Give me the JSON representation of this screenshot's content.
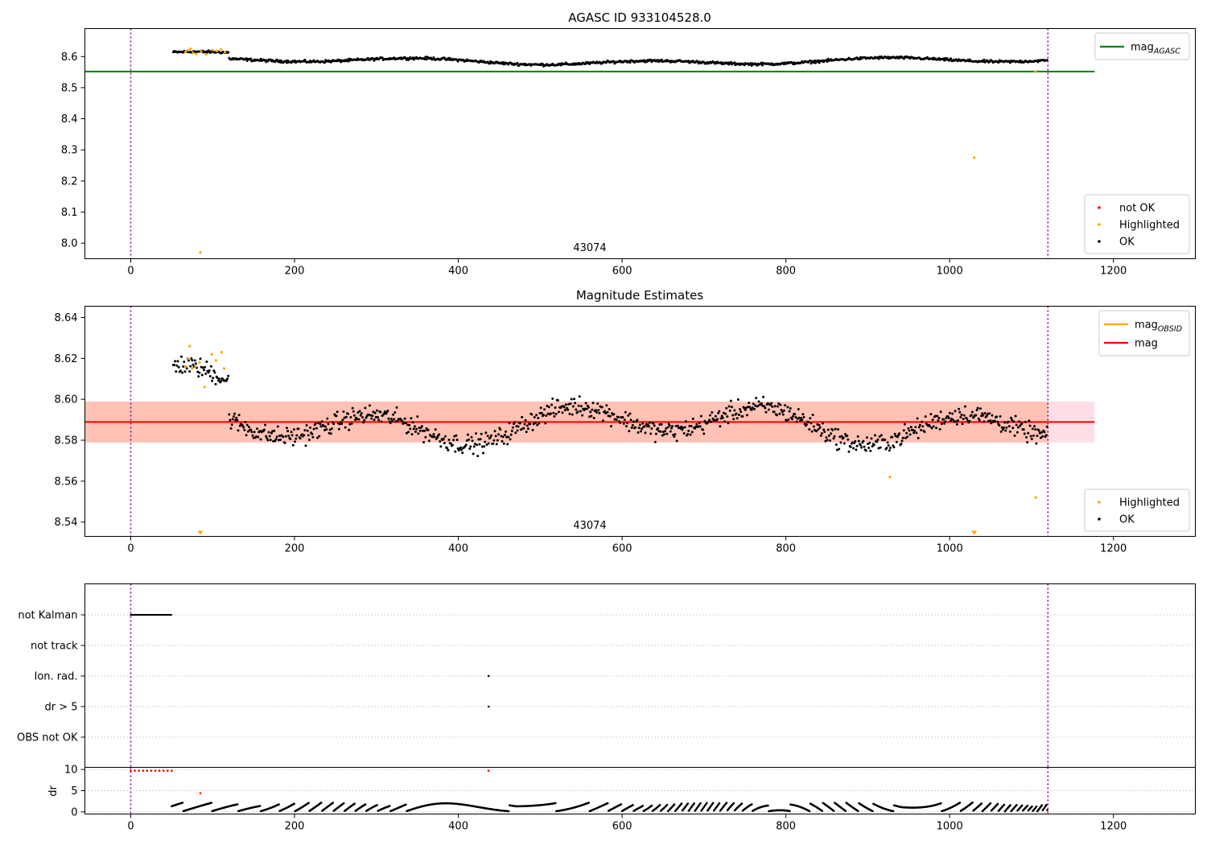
{
  "colors": {
    "ok": "#000000",
    "highlighted": "#ffa500",
    "not_ok": "#ff0000",
    "mag_agasc": "#008000",
    "mag_obsid": "#ffa500",
    "mag": "#ff0000",
    "band": "#ffa07a",
    "band_outer": "#ffc0cb",
    "vline": "#800080"
  },
  "chart_data": [
    {
      "type": "scatter",
      "title": "AGASC ID 933104528.0",
      "annotation": "43074",
      "xlim": [
        -56,
        1300
      ],
      "ylim": [
        7.95,
        8.69
      ],
      "xticks": [
        0,
        200,
        400,
        600,
        800,
        1000,
        1200
      ],
      "yticks": [
        8.0,
        8.1,
        8.2,
        8.3,
        8.4,
        8.5,
        8.6
      ],
      "ytick_labels": [
        "8.0",
        "8.1",
        "8.2",
        "8.3",
        "8.4",
        "8.5",
        "8.6"
      ],
      "vertical_lines": [
        0,
        1120
      ],
      "hlines": [
        {
          "name": "mag_AGASC",
          "y": 8.552,
          "x": [
            -56,
            1177
          ],
          "color": "#008000"
        }
      ],
      "legend_lines": [
        {
          "label": "mag",
          "sub": "AGASC",
          "color": "#008000"
        }
      ],
      "legend_points": [
        {
          "label": "not OK",
          "color": "#ff0000"
        },
        {
          "label": "Highlighted",
          "color": "#ffa500"
        },
        {
          "label": "OK",
          "color": "#000000"
        }
      ],
      "series": [
        {
          "name": "OK",
          "generated": {
            "x_start": 52,
            "x_end": 1120,
            "step": 1.1,
            "base": 8.585,
            "amplitude": 0.012,
            "noise": 0.006
          }
        },
        {
          "name": "Highlighted",
          "points": [
            [
              67,
              8.615
            ],
            [
              70,
              8.62
            ],
            [
              73,
              8.625
            ],
            [
              76,
              8.612
            ],
            [
              80,
              8.608
            ],
            [
              86,
              8.617
            ],
            [
              92,
              8.607
            ],
            [
              100,
              8.621
            ],
            [
              105,
              8.618
            ],
            [
              110,
              8.623
            ],
            [
              115,
              8.615
            ],
            [
              85,
              7.97
            ],
            [
              1030,
              8.275
            ],
            [
              1105,
              8.552
            ]
          ]
        }
      ]
    },
    {
      "type": "scatter",
      "title": "Magnitude Estimates",
      "annotation": "43074",
      "xlim": [
        -56,
        1300
      ],
      "ylim": [
        8.533,
        8.6455
      ],
      "xticks": [
        0,
        200,
        400,
        600,
        800,
        1000,
        1200
      ],
      "yticks": [
        8.54,
        8.56,
        8.58,
        8.6,
        8.62,
        8.64
      ],
      "ytick_labels": [
        "8.54",
        "8.56",
        "8.58",
        "8.60",
        "8.62",
        "8.64"
      ],
      "vertical_lines": [
        0,
        1120
      ],
      "bands": [
        {
          "y": [
            8.5789,
            8.5989
          ],
          "x": [
            -56,
            1177
          ],
          "color": "#ffc0cb"
        },
        {
          "y": [
            8.5789,
            8.5989
          ],
          "x": [
            -56,
            1120
          ],
          "color": "#ffa07a"
        }
      ],
      "hlines": [
        {
          "name": "mag_OBSID",
          "y": 8.5889,
          "x": [
            -56,
            1120
          ],
          "color": "#ffa500"
        },
        {
          "name": "mag",
          "y": 8.5889,
          "x": [
            -56,
            1177
          ],
          "color": "#ff0000"
        }
      ],
      "legend_lines": [
        {
          "label": "mag",
          "sub": "OBSID",
          "color": "#ffa500"
        },
        {
          "label": "mag",
          "sub": "",
          "color": "#ff0000"
        }
      ],
      "legend_points": [
        {
          "label": "Highlighted",
          "color": "#ffa500"
        },
        {
          "label": "OK",
          "color": "#000000"
        }
      ],
      "offscale_markers": [
        {
          "x": 85,
          "color": "#ffa500"
        },
        {
          "x": 1030,
          "color": "#ffa500"
        }
      ],
      "series": [
        {
          "name": "OK",
          "generated": {
            "x_start": 52,
            "x_end": 1120,
            "step": 1.1,
            "base": 8.588,
            "amplitude": 0.009,
            "noise": 0.007
          }
        },
        {
          "name": "Highlighted",
          "points": [
            [
              67,
              8.616
            ],
            [
              70,
              8.62
            ],
            [
              72,
              8.626
            ],
            [
              75,
              8.615
            ],
            [
              79,
              8.616
            ],
            [
              84,
              8.618
            ],
            [
              90,
              8.606
            ],
            [
              99,
              8.622
            ],
            [
              104,
              8.619
            ],
            [
              111,
              8.623
            ],
            [
              114,
              8.615
            ],
            [
              927,
              8.562
            ],
            [
              1105,
              8.552
            ]
          ]
        }
      ]
    },
    {
      "type": "scatter",
      "title": "",
      "xlim": [
        -56,
        1300
      ],
      "flag_rows": [
        "not Kalman",
        "not track",
        "Ion. rad.",
        "dr > 5",
        "OBS not OK"
      ],
      "flags": {
        "not Kalman": {
          "segments": [
            [
              0,
              50
            ]
          ]
        },
        "Ion. rad.": {
          "points": [
            437
          ]
        },
        "dr > 5": {
          "points": [
            437
          ]
        }
      },
      "vertical_lines": [
        0,
        1120
      ]
    },
    {
      "type": "scatter",
      "title": "",
      "ylabel": "dr",
      "xlim": [
        -56,
        1300
      ],
      "ylim": [
        -0.5,
        10.5
      ],
      "xticks": [
        0,
        200,
        400,
        600,
        800,
        1000,
        1200
      ],
      "yticks": [
        0,
        5,
        10
      ],
      "ytick_labels": [
        "0",
        "5",
        "10"
      ],
      "vertical_lines": [
        0,
        1120
      ],
      "series": [
        {
          "name": "OK",
          "generated": {
            "x_start": 50,
            "x_end": 1120,
            "step": 1.1,
            "sawtooth": true,
            "max": 2.3
          }
        },
        {
          "name": "not OK",
          "points": [
            [
              0,
              9.7
            ],
            [
              5,
              9.7
            ],
            [
              10,
              9.7
            ],
            [
              15,
              9.7
            ],
            [
              20,
              9.7
            ],
            [
              25,
              9.7
            ],
            [
              30,
              9.7
            ],
            [
              35,
              9.7
            ],
            [
              40,
              9.7
            ],
            [
              45,
              9.7
            ],
            [
              50,
              9.7
            ],
            [
              437,
              9.7
            ],
            [
              85,
              4.4
            ]
          ]
        }
      ]
    }
  ]
}
